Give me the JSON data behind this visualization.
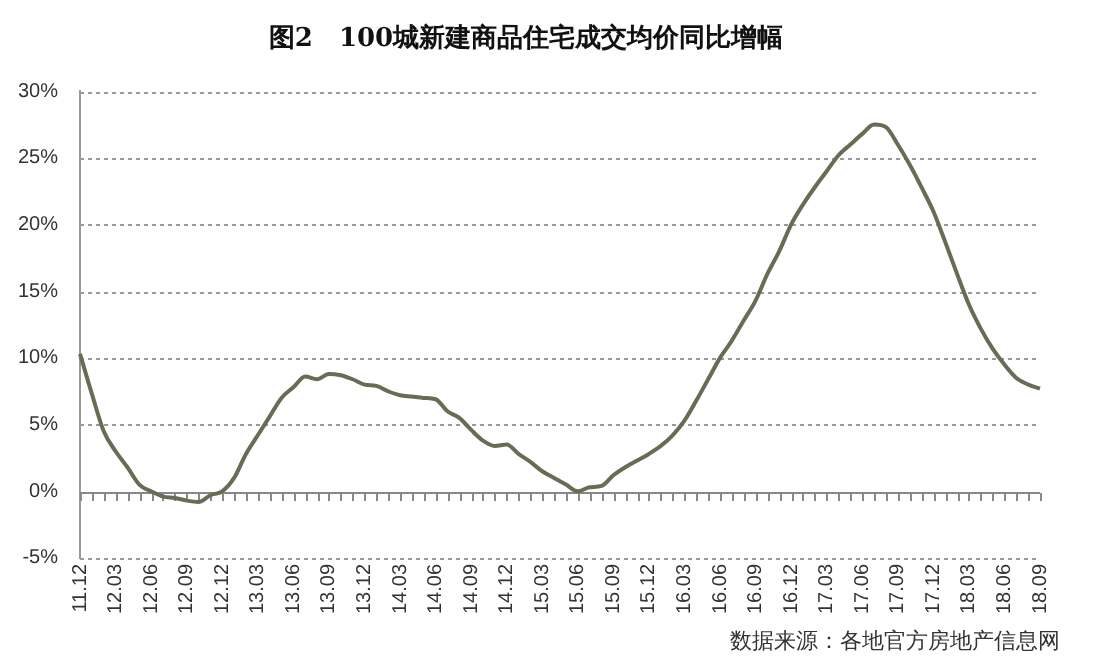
{
  "chart_data": {
    "type": "line",
    "title": "图2　100城新建商品住宅成交均价同比增幅",
    "categories": [
      "11.12",
      null,
      null,
      "12.03",
      null,
      null,
      "12.06",
      null,
      null,
      "12.09",
      null,
      null,
      "12.12",
      null,
      null,
      "13.03",
      null,
      null,
      "13.06",
      null,
      null,
      "13.09",
      null,
      null,
      "13.12",
      null,
      null,
      "14.03",
      null,
      null,
      "14.06",
      null,
      null,
      "14.09",
      null,
      null,
      "14.12",
      null,
      null,
      "15.03",
      null,
      null,
      "15.06",
      null,
      null,
      "15.09",
      null,
      null,
      "15.12",
      null,
      null,
      "16.03",
      null,
      null,
      "16.06",
      null,
      null,
      "16.09",
      null,
      null,
      "16.12",
      null,
      null,
      "17.03",
      null,
      null,
      "17.06",
      null,
      null,
      "17.09",
      null,
      null,
      "17.12",
      null,
      null,
      "18.03",
      null,
      null,
      "18.06",
      null,
      null,
      "18.09"
    ],
    "series": [
      {
        "color": "#6b6b55",
        "values": [
          10.3,
          7.3,
          4.5,
          3.0,
          1.8,
          0.5,
          0.0,
          -0.4,
          -0.5,
          -0.7,
          -0.8,
          -0.3,
          0.0,
          1.0,
          2.8,
          4.2,
          5.6,
          7.0,
          7.8,
          8.6,
          8.4,
          8.8,
          8.7,
          8.4,
          8.0,
          7.9,
          7.5,
          7.2,
          7.1,
          7.0,
          6.9,
          6.0,
          5.5,
          4.6,
          3.8,
          3.4,
          3.5,
          2.8,
          2.2,
          1.5,
          1.0,
          0.5,
          0.0,
          0.3,
          0.4,
          1.2,
          1.8,
          2.3,
          2.8,
          3.4,
          4.2,
          5.3,
          6.8,
          8.4,
          10.0,
          11.3,
          12.8,
          14.3,
          16.3,
          18.0,
          20.0,
          21.5,
          22.8,
          24.0,
          25.2,
          26.0,
          26.8,
          27.5,
          27.3,
          26.0,
          24.5,
          22.8,
          21.0,
          18.7,
          16.3,
          14.0,
          12.2,
          10.7,
          9.5,
          8.5,
          8.0,
          7.7
        ]
      }
    ],
    "ylim": [
      -5,
      30
    ],
    "yticks": [
      {
        "value": -5,
        "label": "-5%"
      },
      {
        "value": 0,
        "label": "0%"
      },
      {
        "value": 5,
        "label": "5%"
      },
      {
        "value": 10,
        "label": "10%"
      },
      {
        "value": 15,
        "label": "15%"
      },
      {
        "value": 20,
        "label": "20%"
      },
      {
        "value": 25,
        "label": "25%"
      },
      {
        "value": 30,
        "label": "30%"
      }
    ],
    "grid": "y",
    "legend": false,
    "marker": "none",
    "line_style": "solid",
    "annotations": [
      "数据来源：各地官方房地产信息网"
    ]
  }
}
